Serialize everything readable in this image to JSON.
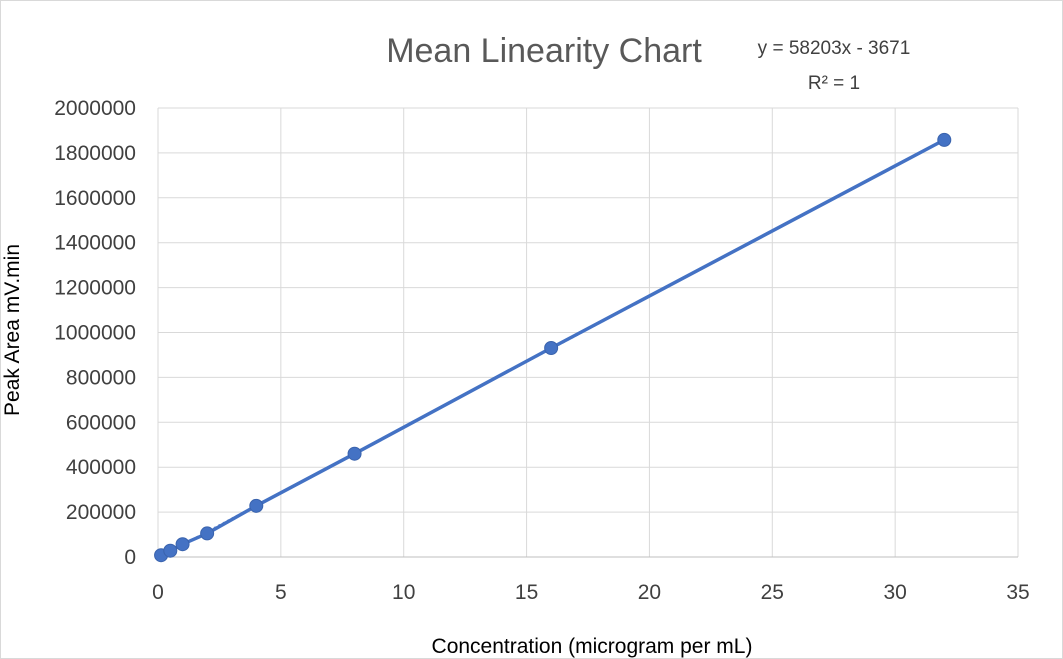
{
  "chart_data": {
    "type": "scatter",
    "title": "Mean Linearity Chart",
    "xlabel": "Concentration (microgram per mL)",
    "ylabel": "Peak Area mV.min",
    "xlim": [
      0,
      35
    ],
    "ylim": [
      0,
      2000000
    ],
    "x_ticks": [
      "0",
      "5",
      "10",
      "15",
      "20",
      "25",
      "30",
      "35"
    ],
    "y_ticks": [
      "0",
      "200000",
      "400000",
      "600000",
      "800000",
      "1000000",
      "1200000",
      "1400000",
      "1600000",
      "1800000",
      "2000000"
    ],
    "grid": true,
    "legend": "none",
    "series": [
      {
        "x": [
          0.125,
          0.5,
          1,
          2,
          4,
          8,
          16,
          32
        ],
        "y": [
          8000,
          28000,
          57000,
          105000,
          228000,
          460000,
          931000,
          1858000
        ],
        "color": "#4472C4",
        "connected": true
      }
    ],
    "trendline": {
      "equation": "y = 58203x - 3671",
      "r_squared": "R² = 1",
      "slope": 58203,
      "intercept": -3671,
      "style": "dotted"
    }
  }
}
